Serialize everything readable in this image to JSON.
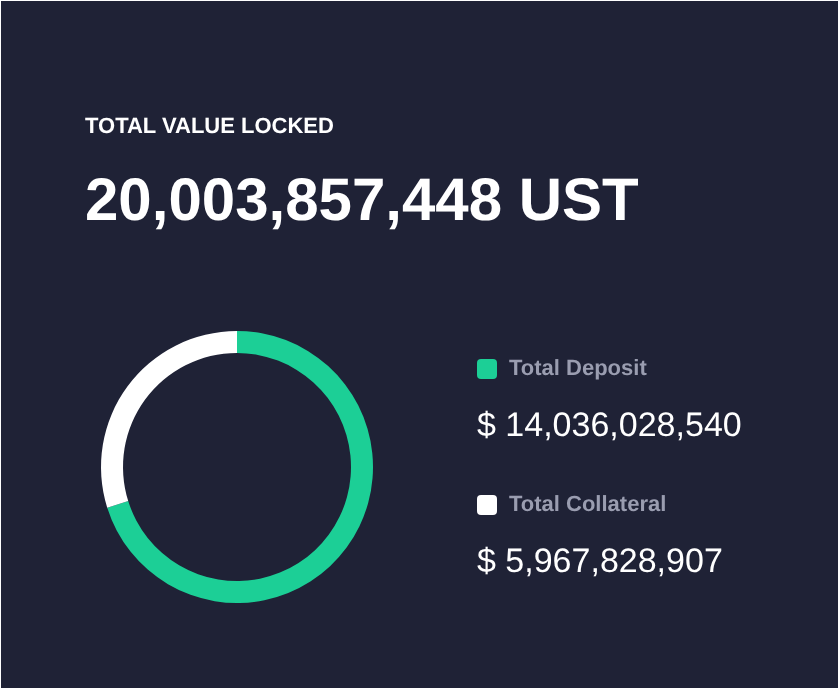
{
  "chart_data": {
    "type": "donut",
    "title": "TOTAL VALUE LOCKED",
    "subtitle": "20,003,857,448 UST",
    "categories": [
      "Total Deposit",
      "Total Collateral"
    ],
    "values": [
      14036028540,
      5967828907
    ],
    "colors": [
      "#1ccf96",
      "#ffffff"
    ],
    "value_labels": [
      "$ 14,036,028,540",
      "$ 5,967,828,907"
    ],
    "legend": "right"
  }
}
